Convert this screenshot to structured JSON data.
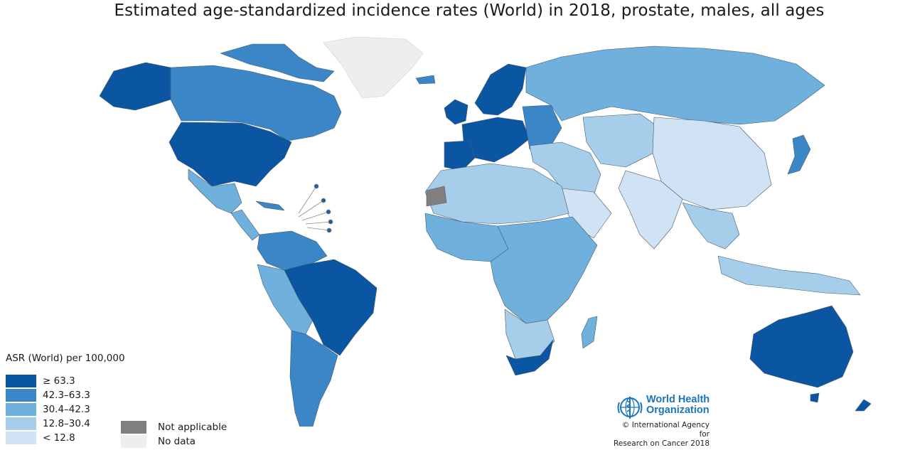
{
  "title": "Estimated age-standardized incidence rates (World) in 2018, prostate, males, all ages",
  "legend": {
    "title": "ASR (World) per 100,000",
    "bins": [
      {
        "label": "≥ 63.3",
        "color": "#0b56a2"
      },
      {
        "label": "42.3–63.3",
        "color": "#3b86c6"
      },
      {
        "label": "30.4–42.3",
        "color": "#6fb0dc"
      },
      {
        "label": "12.8–30.4",
        "color": "#a6cde9"
      },
      {
        "label": "< 12.8",
        "color": "#cfe3f4"
      }
    ],
    "special": [
      {
        "label": "Not applicable",
        "color": "#808080"
      },
      {
        "label": "No data",
        "color": "#eeeeee"
      }
    ]
  },
  "map_regions": [
    {
      "name": "Canada",
      "bin": "42.3–63.3"
    },
    {
      "name": "USA",
      "bin": "≥ 63.3"
    },
    {
      "name": "Mexico",
      "bin": "30.4–42.3"
    },
    {
      "name": "Brazil",
      "bin": "≥ 63.3"
    },
    {
      "name": "Argentina",
      "bin": "42.3–63.3"
    },
    {
      "name": "Russia",
      "bin": "30.4–42.3"
    },
    {
      "name": "China",
      "bin": "< 12.8"
    },
    {
      "name": "India",
      "bin": "< 12.8"
    },
    {
      "name": "Australia",
      "bin": "≥ 63.3"
    },
    {
      "name": "Greenland",
      "bin": "No data"
    },
    {
      "name": "South Africa",
      "bin": "≥ 63.3"
    },
    {
      "name": "Western Sahara",
      "bin": "Not applicable"
    }
  ],
  "logo": {
    "org_line1": "World Health",
    "org_line2": "Organization",
    "credit_line1": "© International Agency for",
    "credit_line2": "Research on Cancer 2018"
  }
}
